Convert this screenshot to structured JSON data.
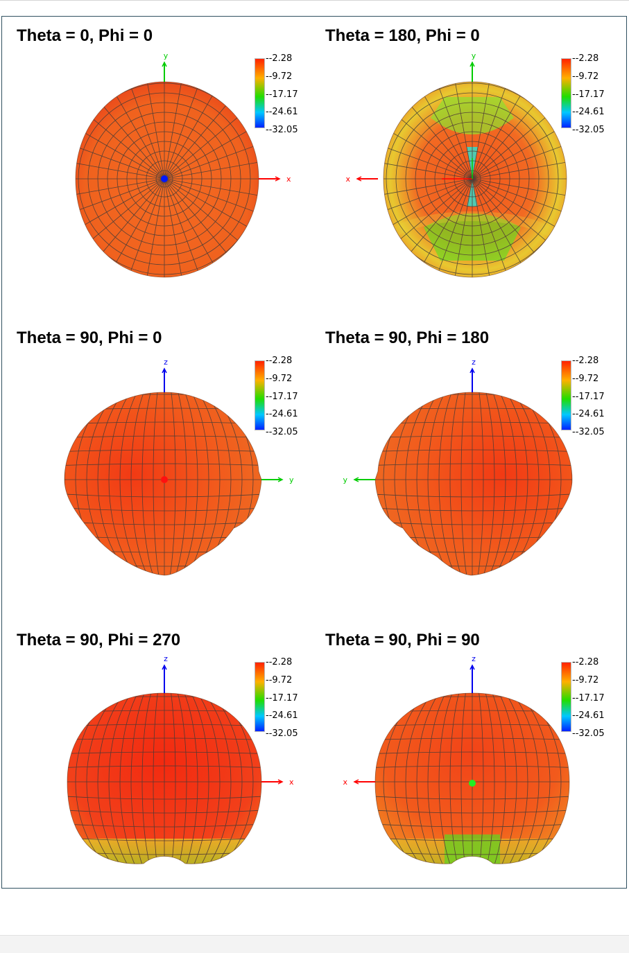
{
  "panels": [
    {
      "title": "Theta = 0, Phi = 0",
      "axis_up": "y",
      "axis_side": "x",
      "shape": "disc",
      "view": "top",
      "center_marker": "blue"
    },
    {
      "title": "Theta = 180, Phi = 0",
      "axis_up": "y",
      "axis_side": "x",
      "shape": "disc",
      "view": "bottom",
      "center_marker": "none"
    },
    {
      "title": "Theta = 90, Phi = 0",
      "axis_up": "z",
      "axis_side": "y",
      "shape": "heart",
      "view": "side",
      "center_marker": "red"
    },
    {
      "title": "Theta = 90, Phi = 180",
      "axis_up": "z",
      "axis_side": "y",
      "shape": "heart",
      "view": "side",
      "center_marker": "none"
    },
    {
      "title": "Theta = 90, Phi = 270",
      "axis_up": "z",
      "axis_side": "x",
      "shape": "bowl",
      "view": "side",
      "center_marker": "none"
    },
    {
      "title": "Theta = 90, Phi = 90",
      "axis_up": "z",
      "axis_side": "x",
      "shape": "bowl",
      "view": "side",
      "center_marker": "green"
    }
  ],
  "colorbar": {
    "labels": [
      "-2.28",
      "-9.72",
      "-17.17",
      "-24.61",
      "-32.05"
    ],
    "colors": [
      "#ff2200",
      "#ffb000",
      "#22dd00",
      "#00c8ff",
      "#0022ff"
    ]
  },
  "colors": {
    "surface_main": "#f25a1c",
    "surface_hot": "#f43012",
    "mesh": "#3a3a3a",
    "axis_x": "#ff0000",
    "axis_y": "#00cc00",
    "axis_z": "#0000ee",
    "frame": "#2f4f5f"
  }
}
